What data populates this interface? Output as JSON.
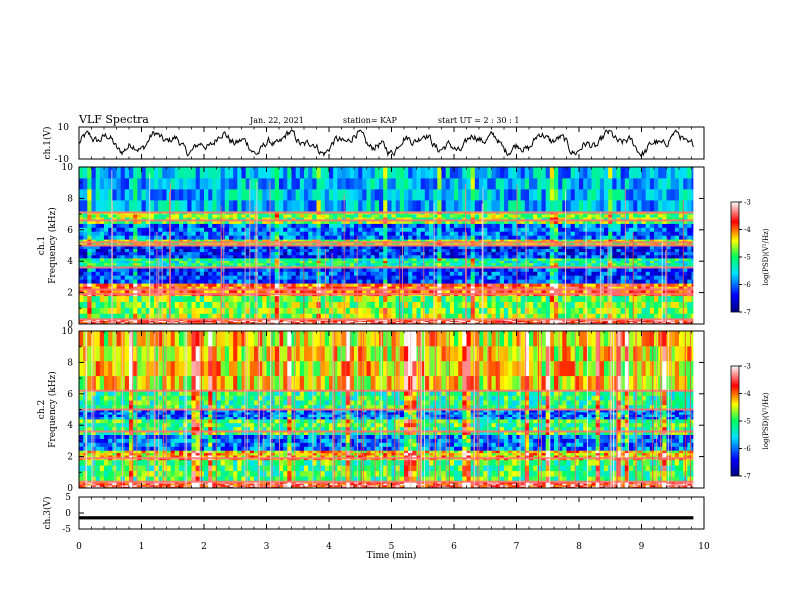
{
  "header": {
    "title": "VLF Spectra",
    "date": "Jan. 22, 2021",
    "station": "station= KAP",
    "start": "start  UT =  2 : 30 : 1"
  },
  "chart_data": [
    {
      "type": "line",
      "panel": "ch1-waveform",
      "ylabel": "ch.1(V)",
      "ylim": [
        -10,
        10
      ],
      "yticks": [
        "10",
        "-10"
      ],
      "x_range_min": [
        0,
        9.83
      ],
      "description_values": "noisy waveform oscillating roughly between -5 and +5 V"
    },
    {
      "type": "heatmap",
      "panel": "ch1-spectrogram",
      "ylabel_top": "ch.1",
      "ylabel": "Frequency (kHz)",
      "ylim": [
        0,
        10
      ],
      "yticks": [
        "0",
        "2",
        "4",
        "6",
        "8",
        "10"
      ],
      "xlim": [
        0,
        10
      ],
      "colorbar": {
        "label": "log(PSD)(V²/Hz)",
        "ticks": [
          "-3",
          "-4",
          "-5",
          "-6",
          "-7"
        ],
        "range": [
          -7,
          -3
        ]
      },
      "bands": [
        {
          "from": 0.0,
          "to": 0.3,
          "level": -3.5
        },
        {
          "from": 0.3,
          "to": 1.8,
          "level": -4.8
        },
        {
          "from": 1.8,
          "to": 2.6,
          "level": -3.9
        },
        {
          "from": 2.6,
          "to": 3.6,
          "level": -6.2
        },
        {
          "from": 3.6,
          "to": 4.2,
          "level": -5.2
        },
        {
          "from": 4.2,
          "to": 5.0,
          "level": -6.3
        },
        {
          "from": 5.0,
          "to": 5.4,
          "level": -4.6
        },
        {
          "from": 5.4,
          "to": 6.4,
          "level": -6.0
        },
        {
          "from": 6.4,
          "to": 7.2,
          "level": -4.8
        },
        {
          "from": 7.2,
          "to": 10.0,
          "level": -5.7
        }
      ],
      "lines": [
        0.3,
        1.9,
        2.2,
        3.6,
        5.0,
        5.2,
        6.6,
        7.1
      ]
    },
    {
      "type": "heatmap",
      "panel": "ch2-spectrogram",
      "ylabel_top": "ch.2",
      "ylabel": "Frequency (kHz)",
      "ylim": [
        0,
        10
      ],
      "yticks": [
        "0",
        "2",
        "4",
        "6",
        "8",
        "10"
      ],
      "xlim": [
        0,
        10
      ],
      "colorbar": {
        "label": "log(PSD)(V²/Hz)",
        "ticks": [
          "-3",
          "-4",
          "-5",
          "-6",
          "-7"
        ],
        "range": [
          -7,
          -3
        ]
      },
      "bands": [
        {
          "from": 0.0,
          "to": 0.4,
          "level": -3.6
        },
        {
          "from": 0.4,
          "to": 1.8,
          "level": -5.0
        },
        {
          "from": 1.8,
          "to": 2.4,
          "level": -4.3
        },
        {
          "from": 2.4,
          "to": 3.4,
          "level": -6.0
        },
        {
          "from": 3.4,
          "to": 4.4,
          "level": -5.0
        },
        {
          "from": 4.4,
          "to": 5.0,
          "level": -6.0
        },
        {
          "from": 5.0,
          "to": 6.2,
          "level": -5.1
        },
        {
          "from": 6.2,
          "to": 10.0,
          "level": -4.4
        }
      ],
      "lines": [
        0.4,
        1.9,
        3.6,
        5.0,
        6.2
      ]
    },
    {
      "type": "line",
      "panel": "ch3-waveform",
      "ylabel": "ch.3(V)",
      "ylim": [
        -5,
        5
      ],
      "yticks": [
        "5",
        "0",
        "-5"
      ],
      "xlabel": "Time  (min)",
      "xlim": [
        0,
        10
      ],
      "xticks": [
        "0",
        "1",
        "2",
        "3",
        "4",
        "5",
        "6",
        "7",
        "8",
        "9",
        "10"
      ],
      "values_note": "constant near -1.5 V"
    }
  ]
}
